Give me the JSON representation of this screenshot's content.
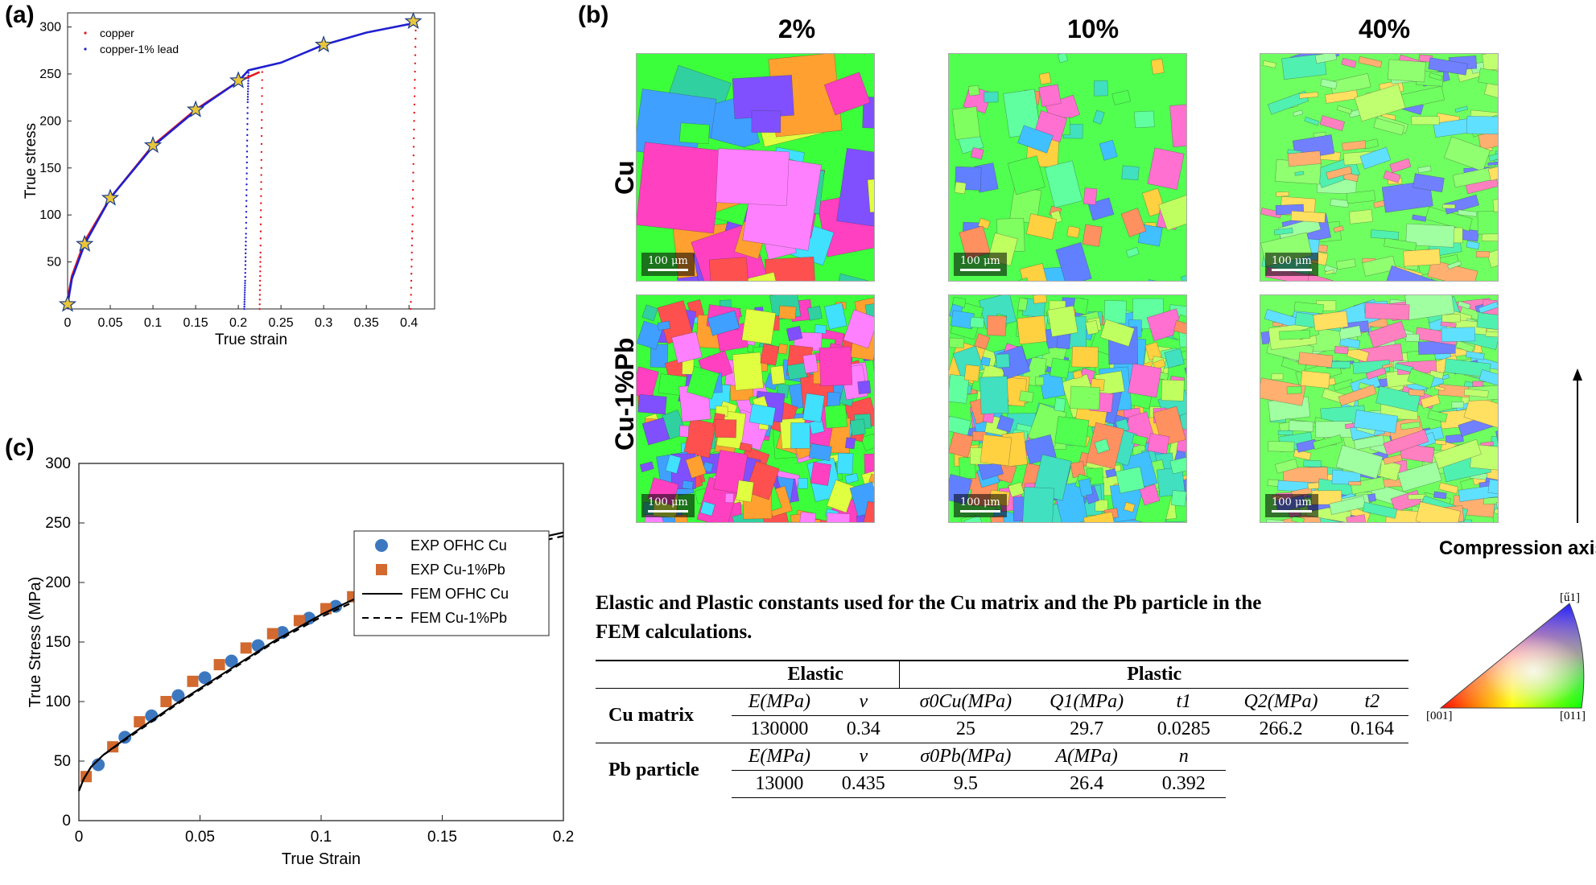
{
  "panel_labels": {
    "a": "(a)",
    "b": "(b)",
    "c": "(c)"
  },
  "chart_data": [
    {
      "type": "line",
      "title": "",
      "xlabel": "True strain",
      "ylabel": "True stress",
      "xlim": [
        0,
        0.43
      ],
      "ylim": [
        0,
        315
      ],
      "xticks": [
        0,
        0.05,
        0.1,
        0.15,
        0.2,
        0.25,
        0.3,
        0.35,
        0.4
      ],
      "xtick_labels": [
        "0",
        "0.05",
        "0.1",
        "0.15",
        "0.2",
        "0.25",
        "0.3",
        "0.35",
        "0.4"
      ],
      "yticks": [
        50,
        100,
        150,
        200,
        250,
        300
      ],
      "ytick_labels": [
        "50",
        "100",
        "150",
        "200",
        "250",
        "300"
      ],
      "legend_position": "top-left",
      "series": [
        {
          "name": "copper",
          "color": "#e41a1c",
          "x": [
            0,
            0.005,
            0.02,
            0.05,
            0.1,
            0.15,
            0.2,
            0.225
          ],
          "y": [
            10,
            35,
            72,
            118,
            174,
            212,
            242,
            252
          ]
        },
        {
          "name": "copper-1% lead",
          "color": "#1f1fd0",
          "x": [
            0,
            0.005,
            0.02,
            0.05,
            0.1,
            0.15,
            0.2,
            0.212,
            0.25,
            0.3,
            0.35,
            0.4,
            0.405
          ],
          "y": [
            5,
            32,
            69,
            118,
            173,
            211,
            242,
            254,
            262,
            281,
            294,
            303,
            305
          ]
        }
      ],
      "unloading": [
        {
          "series": "copper-1% lead",
          "x": [
            0.207,
            0.208,
            0.209,
            0.21,
            0.211,
            0.212
          ],
          "y": [
            0,
            30,
            80,
            150,
            220,
            254
          ]
        },
        {
          "series": "copper",
          "x": [
            0.225,
            0.226,
            0.227,
            0.228
          ],
          "y": [
            0,
            60,
            150,
            252
          ]
        },
        {
          "series": "copper",
          "x": [
            0.402,
            0.404,
            0.406,
            0.408
          ],
          "y": [
            0,
            90,
            200,
            305
          ]
        }
      ],
      "star_markers": {
        "x": [
          0,
          0.02,
          0.05,
          0.1,
          0.15,
          0.2,
          0.3,
          0.405
        ],
        "y": [
          5,
          69,
          118,
          174,
          212,
          243,
          281,
          306
        ]
      }
    },
    {
      "type": "scatter",
      "title": "",
      "xlabel": "True Strain",
      "ylabel": "True Stress (MPa)",
      "xlim": [
        0,
        0.2
      ],
      "ylim": [
        0,
        300
      ],
      "xticks": [
        0,
        0.05,
        0.1,
        0.15,
        0.2
      ],
      "xtick_labels": [
        "0",
        "0.05",
        "0.1",
        "0.15",
        "0.2"
      ],
      "yticks": [
        0,
        50,
        100,
        150,
        200,
        250,
        300
      ],
      "ytick_labels": [
        "0",
        "50",
        "100",
        "150",
        "200",
        "250",
        "300"
      ],
      "legend_position": "bottom-right",
      "series": [
        {
          "name": "EXP OFHC Cu",
          "marker": "circle",
          "color": "#3c78c0",
          "x": [
            0.008,
            0.019,
            0.03,
            0.041,
            0.052,
            0.063,
            0.074,
            0.084,
            0.095,
            0.106,
            0.117,
            0.128,
            0.138,
            0.149,
            0.16,
            0.17,
            0.18,
            0.19
          ],
          "y": [
            47,
            70,
            88,
            105,
            120,
            134,
            147,
            158,
            170,
            180,
            189,
            197,
            205,
            213,
            220,
            226,
            232,
            238
          ]
        },
        {
          "name": "EXP Cu-1%Pb",
          "marker": "square",
          "color": "#d2692e",
          "x": [
            0.003,
            0.014,
            0.025,
            0.036,
            0.047,
            0.058,
            0.069,
            0.08,
            0.091,
            0.102,
            0.113,
            0.124,
            0.135,
            0.146,
            0.157,
            0.168,
            0.179,
            0.19
          ],
          "y": [
            37,
            62,
            83,
            100,
            117,
            131,
            145,
            157,
            168,
            178,
            188,
            196,
            204,
            212,
            219,
            226,
            233,
            238
          ]
        },
        {
          "name": "FEM OFHC Cu",
          "style": "solid",
          "color": "#000000",
          "x": [
            0,
            0.002,
            0.005,
            0.01,
            0.02,
            0.04,
            0.06,
            0.08,
            0.1,
            0.12,
            0.14,
            0.16,
            0.18,
            0.2
          ],
          "y": [
            25,
            35,
            45,
            55,
            70,
            98,
            124,
            150,
            173,
            192,
            208,
            222,
            233,
            242
          ]
        },
        {
          "name": "FEM Cu-1%Pb",
          "style": "dashed",
          "color": "#000000",
          "x": [
            0,
            0.002,
            0.005,
            0.01,
            0.02,
            0.04,
            0.06,
            0.08,
            0.1,
            0.12,
            0.14,
            0.16,
            0.18,
            0.2
          ],
          "y": [
            25,
            35,
            45,
            55,
            69,
            97,
            123,
            149,
            171,
            190,
            206,
            219,
            230,
            239
          ]
        }
      ]
    }
  ],
  "ebsd": {
    "columns": [
      "2%",
      "10%",
      "40%"
    ],
    "rows": [
      "Cu",
      "Cu-1%Pb"
    ],
    "scale_bar": "100 μm",
    "compression_axis": "Compression axis",
    "ipf_labels": {
      "top": "[ű1]",
      "left": "[001]",
      "right": "[011]"
    }
  },
  "table": {
    "caption_line1": "Elastic and Plastic constants used for the Cu matrix and the Pb particle in the",
    "caption_line2": "FEM calculations.",
    "group_elastic": "Elastic",
    "group_plastic": "Plastic",
    "rows": [
      {
        "name": "Cu matrix",
        "headers": [
          "E(MPa)",
          "ν",
          "σ0Cu(MPa)",
          "Q1(MPa)",
          "t1",
          "Q2(MPa)",
          "t2"
        ],
        "values": [
          "130000",
          "0.34",
          "25",
          "29.7",
          "0.0285",
          "266.2",
          "0.164"
        ]
      },
      {
        "name": "Pb particle",
        "headers": [
          "E(MPa)",
          "ν",
          "σ0Pb(MPa)",
          "A(MPa)",
          "n"
        ],
        "values": [
          "13000",
          "0.435",
          "9.5",
          "26.4",
          "0.392"
        ]
      }
    ]
  }
}
